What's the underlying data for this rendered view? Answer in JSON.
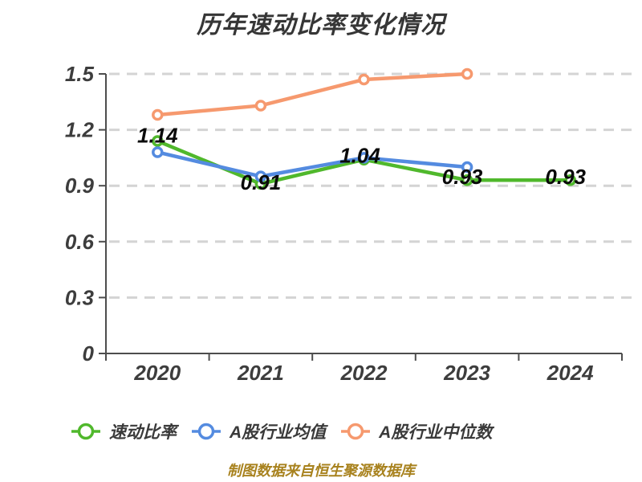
{
  "title": "历年速动比率变化情况",
  "footer": "制图数据来自恒生聚源数据库",
  "colors": {
    "quick_ratio": "#50b82c",
    "industry_avg": "#548be0",
    "industry_median": "#f6996e",
    "axis": "#4d4d4d",
    "grid": "#d4d4d4",
    "tick_text": "#3d3d3d",
    "data_label": "#0a0a0a",
    "title_text": "#363636",
    "footer_text": "#a8821e",
    "marker_fill": "#ffffff"
  },
  "chart_data": {
    "type": "line",
    "title": "历年速动比率变化情况",
    "categories": [
      "2020",
      "2021",
      "2022",
      "2023",
      "2024"
    ],
    "series": [
      {
        "id": "quick-ratio",
        "name": "速动比率",
        "color_key": "quick_ratio",
        "values": [
          1.14,
          0.91,
          1.04,
          0.93,
          0.93
        ],
        "point_labels": [
          "1.14",
          "0.91",
          "1.04",
          "0.93",
          "0.93"
        ],
        "label_offsets": [
          [
            0,
            -7
          ],
          [
            0,
            -2
          ],
          [
            -5,
            -5
          ],
          [
            -6,
            -4
          ],
          [
            -6,
            -4
          ]
        ]
      },
      {
        "id": "industry-average",
        "name": "A股行业均值",
        "color_key": "industry_avg",
        "values": [
          1.08,
          0.95,
          1.05,
          1.0,
          null
        ],
        "point_labels": null,
        "label_offsets": null
      },
      {
        "id": "industry-median",
        "name": "A股行业中位数",
        "color_key": "industry_median",
        "values": [
          1.28,
          1.33,
          1.47,
          1.5,
          null
        ],
        "point_labels": null,
        "label_offsets": null
      }
    ],
    "xlabel": "",
    "ylabel": "",
    "ylim": [
      0,
      1.5
    ],
    "yticks": [
      "0",
      "0.3",
      "0.6",
      "0.9",
      "1.2",
      "1.5"
    ],
    "grid": "dashed",
    "legend_position": "bottom",
    "source_note": "制图数据来自恒生聚源数据库"
  }
}
